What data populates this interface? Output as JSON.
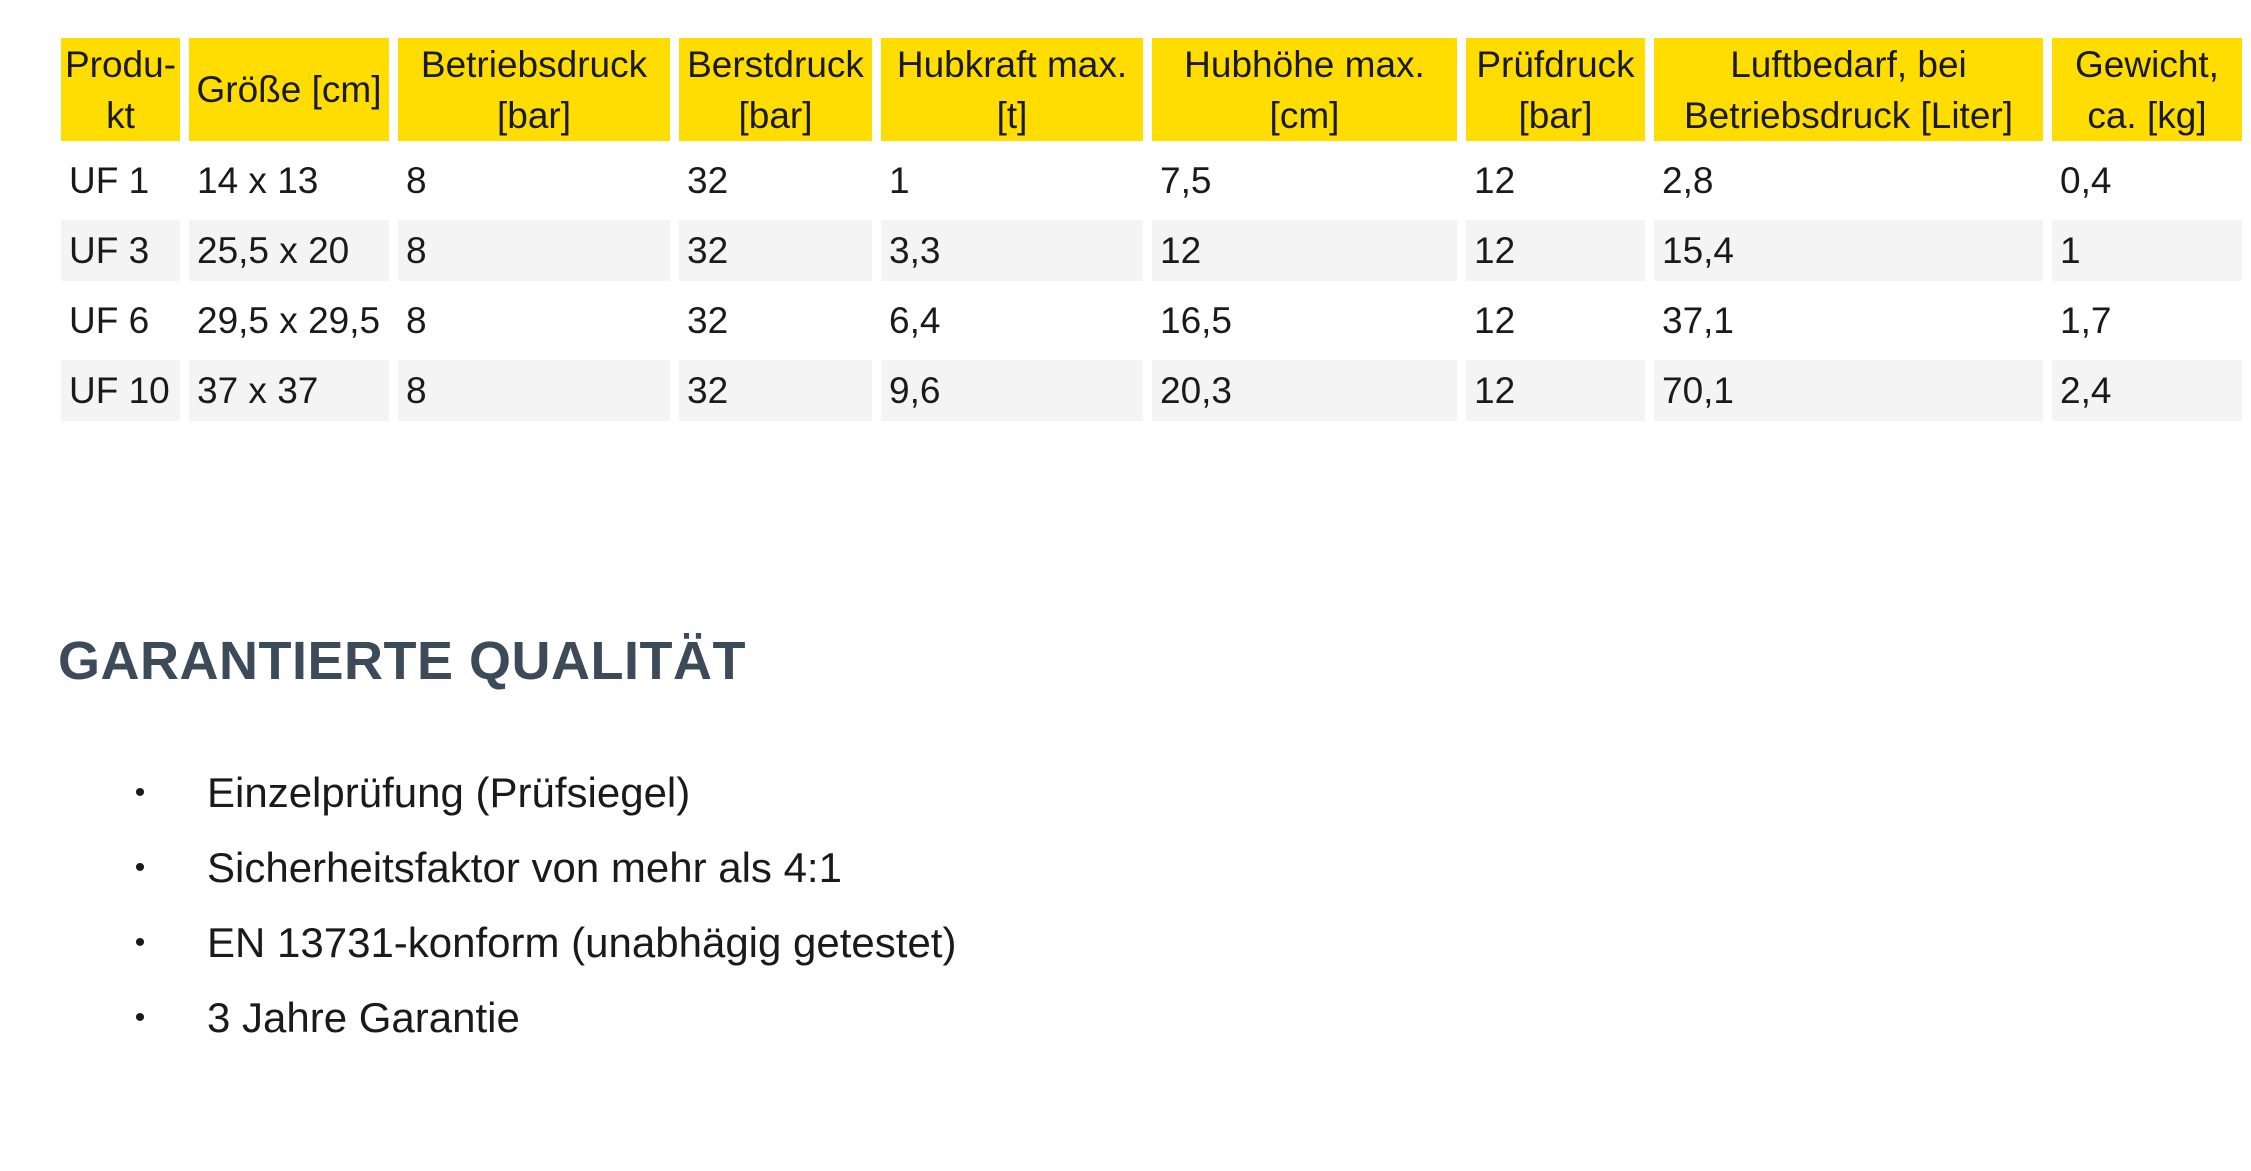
{
  "table": {
    "headers": [
      "Produ­kt",
      "Größe [cm]",
      "Betriebsdruck [bar]",
      "Berstdruck [bar]",
      "Hubkraft max. [t]",
      "Hubhöhe max. [cm]",
      "Prüfdruck [bar]",
      "Luftbedarf, bei Betriebsdruck [Liter]",
      "Gewicht, ca. [kg]"
    ],
    "rows": [
      [
        "UF 1",
        "14 x 13",
        "8",
        "32",
        "1",
        "7,5",
        "12",
        "2,8",
        "0,4"
      ],
      [
        "UF 3",
        "25,5 x 20",
        "8",
        "32",
        "3,3",
        "12",
        "12",
        "15,4",
        "1"
      ],
      [
        "UF 6",
        "29,5 x 29,5",
        "8",
        "32",
        "6,4",
        "16,5",
        "12",
        "37,1",
        "1,7"
      ],
      [
        "UF 10",
        "37 x 37",
        "8",
        "32",
        "9,6",
        "20,3",
        "12",
        "70,1",
        "2,4"
      ]
    ]
  },
  "section": {
    "title": "GARANTIERTE QUALITÄT",
    "bullet_glyph": "•",
    "items": [
      "Einzelprüfung (Prüfsiegel)",
      "Sicherheitsfaktor von mehr als 4:1",
      "EN 13731-konform (unabhägig getestet)",
      "3 Jahre Garantie"
    ]
  },
  "colors": {
    "header_background": "#ffdd00",
    "alt_row_background": "#f4f4f4",
    "title_color": "#3c4a5a"
  }
}
